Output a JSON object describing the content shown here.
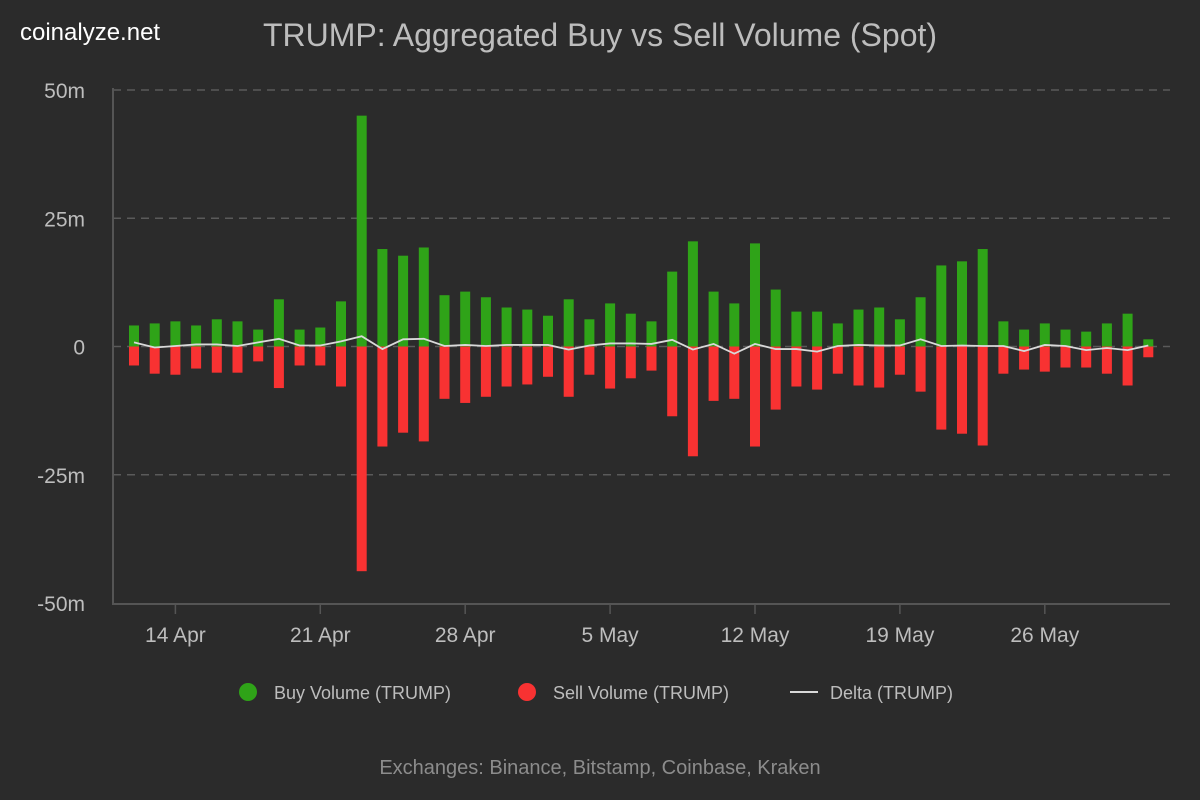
{
  "brand": "coinalyze.net",
  "chart_data": {
    "type": "bar",
    "title": "TRUMP: Aggregated Buy vs Sell Volume (Spot)",
    "footer": "Exchanges: Binance, Bitstamp, Coinbase, Kraken",
    "ylim": [
      -50,
      50
    ],
    "y_ticks": [
      {
        "value": 50,
        "label": "50m"
      },
      {
        "value": 25,
        "label": "25m"
      },
      {
        "value": 0,
        "label": "0"
      },
      {
        "value": -25,
        "label": "-25m"
      },
      {
        "value": -50,
        "label": "-50m"
      }
    ],
    "y_unit": "millions",
    "grid": true,
    "legend_position": "bottom",
    "x_ticks": [
      {
        "index": 2,
        "label": "14 Apr"
      },
      {
        "index": 9,
        "label": "21 Apr"
      },
      {
        "index": 16,
        "label": "28 Apr"
      },
      {
        "index": 23,
        "label": "5 May"
      },
      {
        "index": 30,
        "label": "12 May"
      },
      {
        "index": 37,
        "label": "19 May"
      },
      {
        "index": 44,
        "label": "26 May"
      }
    ],
    "categories": [
      "12 Apr",
      "13 Apr",
      "14 Apr",
      "15 Apr",
      "16 Apr",
      "17 Apr",
      "18 Apr",
      "19 Apr",
      "20 Apr",
      "21 Apr",
      "22 Apr",
      "23 Apr",
      "24 Apr",
      "25 Apr",
      "26 Apr",
      "27 Apr",
      "28 Apr",
      "29 Apr",
      "30 Apr",
      "1 May",
      "2 May",
      "3 May",
      "4 May",
      "5 May",
      "6 May",
      "7 May",
      "8 May",
      "9 May",
      "10 May",
      "11 May",
      "12 May",
      "13 May",
      "14 May",
      "15 May",
      "16 May",
      "17 May",
      "18 May",
      "19 May",
      "20 May",
      "21 May",
      "22 May",
      "23 May",
      "24 May",
      "25 May",
      "26 May",
      "27 May",
      "28 May",
      "29 May",
      "30 May",
      "31 May"
    ],
    "series": [
      {
        "name": "Buy Volume (TRUMP)",
        "color": "#2fa318",
        "kind": "bar",
        "values": [
          4.1,
          4.5,
          4.9,
          4.1,
          5.3,
          4.9,
          3.3,
          9.2,
          3.3,
          3.7,
          8.8,
          45,
          19,
          17.7,
          19.3,
          10,
          10.7,
          9.6,
          7.6,
          7.2,
          6.0,
          9.2,
          5.3,
          8.4,
          6.4,
          4.9,
          14.6,
          20.5,
          10.7,
          8.4,
          20.1,
          11.1,
          6.8,
          6.8,
          4.5,
          7.2,
          7.6,
          5.3,
          9.6,
          15.8,
          16.6,
          19,
          4.9,
          3.3,
          4.5,
          3.3,
          2.9,
          4.5,
          6.4,
          1.4
        ]
      },
      {
        "name": "Sell Volume (TRUMP)",
        "color": "#f83232",
        "kind": "bar",
        "values": [
          -3.7,
          -5.3,
          -5.5,
          -4.3,
          -5.1,
          -5.1,
          -2.9,
          -8.1,
          -3.7,
          -3.7,
          -7.8,
          -43.8,
          -19.5,
          -16.8,
          -18.5,
          -10.2,
          -11,
          -9.8,
          -7.8,
          -7.4,
          -5.9,
          -9.8,
          -5.5,
          -8.2,
          -6.2,
          -4.7,
          -13.6,
          -21.4,
          -10.6,
          -10.2,
          -19.5,
          -12.3,
          -7.8,
          -8.4,
          -5.3,
          -7.6,
          -8.0,
          -5.5,
          -8.8,
          -16.2,
          -17,
          -19.3,
          -5.3,
          -4.5,
          -4.9,
          -4.1,
          -4.1,
          -5.3,
          -7.6,
          -2.1
        ]
      },
      {
        "name": "Delta (TRUMP)",
        "color": "#d9d9d9",
        "kind": "line",
        "values": [
          0.8,
          -0.2,
          0.1,
          0.4,
          0.4,
          0.1,
          0.8,
          1.5,
          0.2,
          0.2,
          1.0,
          2.0,
          -0.5,
          1.4,
          1.5,
          0.1,
          0.3,
          0.1,
          0.3,
          0.3,
          0.3,
          -0.6,
          0.2,
          0.6,
          0.6,
          0.5,
          1.3,
          -0.6,
          0.5,
          -1.4,
          0.5,
          -0.5,
          -0.5,
          -1.0,
          0.1,
          0.3,
          0.2,
          0.2,
          1.4,
          0.1,
          0.2,
          0.1,
          0.1,
          -0.9,
          0.3,
          0.1,
          -0.7,
          -0.3,
          -0.7,
          0.2
        ]
      }
    ]
  }
}
